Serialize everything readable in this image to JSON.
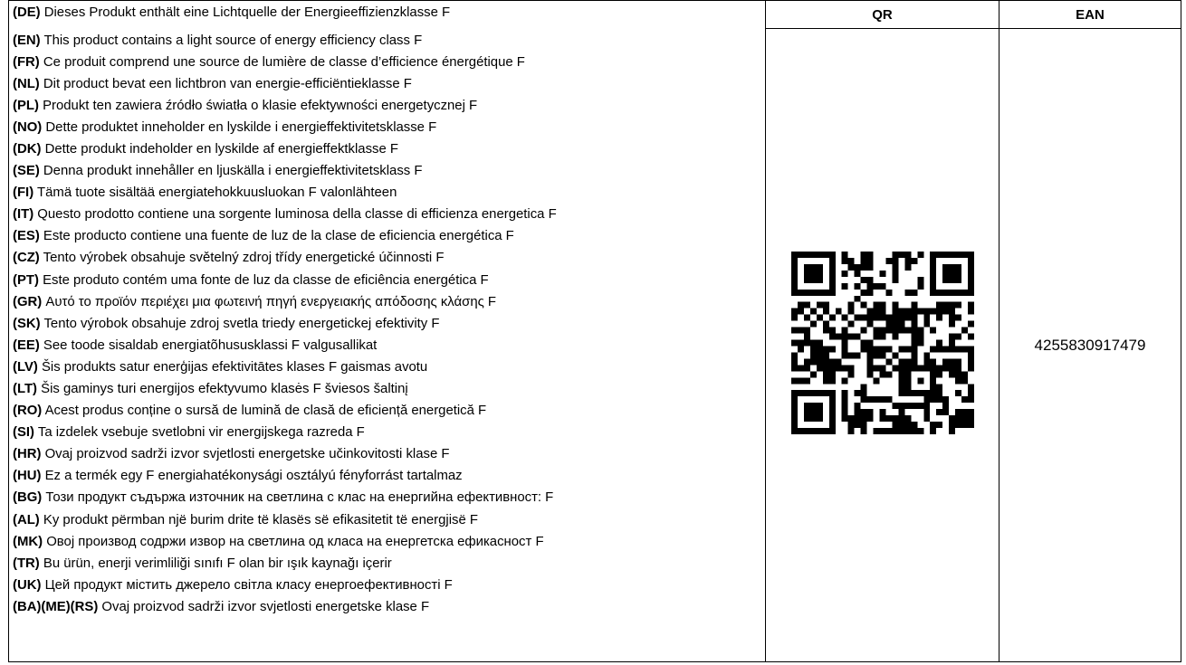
{
  "header": {
    "qr_label": "QR",
    "ean_label": "EAN"
  },
  "lines": [
    {
      "code": "(DE)",
      "text": "Dieses Produkt enthält eine Lichtquelle der Energieeffizienzklasse F"
    },
    {
      "code": "(EN)",
      "text": "This product contains a light source of energy efficiency class F"
    },
    {
      "code": "(FR)",
      "text": "Ce produit comprend une source de lumière de classe d’efficience énergétique F"
    },
    {
      "code": "(NL)",
      "text": "Dit product bevat een lichtbron van energie-efficiëntieklasse F"
    },
    {
      "code": "(PL)",
      "text": "Produkt ten zawiera źródło światła o klasie efektywności energetycznej F"
    },
    {
      "code": "(NO)",
      "text": "Dette produktet inneholder en lyskilde i energieffektivitetsklasse F"
    },
    {
      "code": "(DK)",
      "text": "Dette produkt indeholder en lyskilde af energieffektklasse F"
    },
    {
      "code": "(SE)",
      "text": "Denna produkt innehåller en ljuskälla i energieffektivitetsklass F"
    },
    {
      "code": "(FI)",
      "text": "Tämä tuote sisältää energiatehokkuusluokan F valonlähteen"
    },
    {
      "code": "(IT)",
      "text": "Questo prodotto contiene una sorgente luminosa della classe di efficienza energetica F"
    },
    {
      "code": "(ES)",
      "text": "Este producto contiene una fuente de luz de la clase de eficiencia energética F"
    },
    {
      "code": "(CZ)",
      "text": "Tento výrobek obsahuje světelný zdroj třídy energetické účinnosti F"
    },
    {
      "code": "(PT)",
      "text": "Este produto contém uma fonte de luz da classe de eficiência energética F"
    },
    {
      "code": "(GR)",
      "text": "Αυτό το προϊόν περιέχει μια φωτεινή πηγή ενεργειακής απόδοσης κλάσης F"
    },
    {
      "code": "(SK)",
      "text": "Tento výrobok obsahuje zdroj svetla triedy energetickej efektivity F"
    },
    {
      "code": "(EE)",
      "text": "See toode sisaldab energiatõhususklassi F valgusallikat"
    },
    {
      "code": "(LV)",
      "text": "Šis produkts satur enerģijas efektivitātes klases F gaismas avotu"
    },
    {
      "code": "(LT)",
      "text": "Šis gaminys turi energijos efektyvumo klasės F šviesos šaltinį"
    },
    {
      "code": "(RO)",
      "text": "Acest produs conține o sursă de lumină de clasă de eficiență energetică F"
    },
    {
      "code": "(SI)",
      "text": "Ta izdelek vsebuje svetlobni vir energijskega razreda F"
    },
    {
      "code": "(HR)",
      "text": "Ovaj proizvod sadrži izvor svjetlosti energetske učinkovitosti klase F"
    },
    {
      "code": "(HU)",
      "text": "Ez a termék egy F energiahatékonysági osztályú fényforrást tartalmaz"
    },
    {
      "code": "(BG)",
      "text": "Този продукт съдържа източник на светлина с клас на енергийна ефективност: F"
    },
    {
      "code": "(AL)",
      "text": "Ky produkt përmban një burim drite të klasës së efikasitetit të energjisë F"
    },
    {
      "code": "(MK)",
      "text": "Овој производ содржи извор на светлина од класа на енергетска ефикасност F"
    },
    {
      "code": "(TR)",
      "text": "Bu ürün, enerji verimliliği sınıfı F olan bir ışık kaynağı içerir"
    },
    {
      "code": "(UK)",
      "text": "Цей продукт містить джерело світла класу енергоефективності F"
    },
    {
      "code": "(BA)(ME)(RS)",
      "text": "Ovaj proizvod sadrži izvor svjetlosti energetske klase F"
    }
  ],
  "qr": {
    "icon": "qr-code-icon",
    "color": "#000000"
  },
  "ean": {
    "value": "4255830917479"
  }
}
